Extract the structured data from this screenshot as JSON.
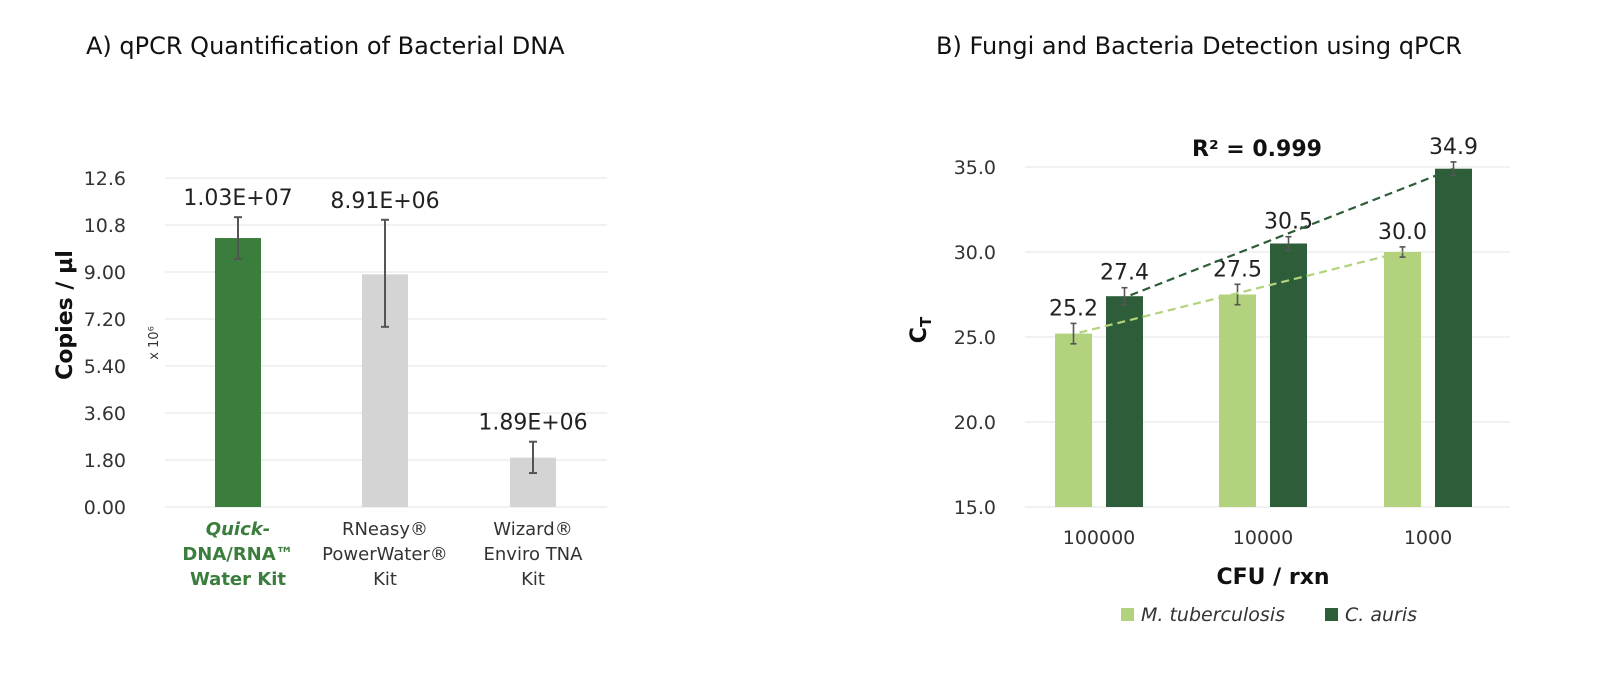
{
  "colors": {
    "highlight_green": "#3a7d3c",
    "grey_bar": "#d4d4d4",
    "light_green": "#b3d27e",
    "dark_green": "#2e5e39",
    "grid": "#e3e3e3",
    "error_bar": "#555555"
  },
  "chart_data": [
    {
      "type": "bar",
      "title": "A) qPCR Quantification of Bacterial DNA",
      "ylabel": "Copies / µl",
      "y_multiplier": "x 10⁶",
      "ylim": [
        0,
        12.6
      ],
      "yticks": [
        "0.00",
        "1.80",
        "3.60",
        "5.40",
        "7.20",
        "9.00",
        "10.8",
        "12.6"
      ],
      "categories": [
        [
          "Quick-",
          "DNA/RNA™",
          "Water Kit"
        ],
        [
          "RNeasy®",
          "PowerWater®",
          "Kit"
        ],
        [
          "Wizard®",
          "Enviro TNA",
          "Kit"
        ]
      ],
      "highlight_category": 0,
      "values": [
        10.3,
        8.91,
        1.89
      ],
      "error": [
        [
          9.5,
          11.1
        ],
        [
          6.9,
          11.0
        ],
        [
          1.3,
          2.5
        ]
      ],
      "data_labels": [
        "1.03E+07",
        "8.91E+06",
        "1.89E+06"
      ],
      "grid": true
    },
    {
      "type": "bar",
      "title": "B) Fungi and Bacteria Detection using qPCR",
      "xlabel": "CFU / rxn",
      "ylabel": "CT",
      "ylim": [
        15,
        35
      ],
      "yticks": [
        "15.0",
        "20.0",
        "25.0",
        "30.0",
        "35.0"
      ],
      "categories": [
        "100000",
        "10000",
        "1000"
      ],
      "series": [
        {
          "name": "M. tuberculosis",
          "values": [
            25.2,
            27.5,
            30.0
          ],
          "error": [
            0.6,
            0.6,
            0.3
          ],
          "data_labels": [
            "25.2",
            "27.5",
            "30.0"
          ]
        },
        {
          "name": "C. auris",
          "values": [
            27.4,
            30.5,
            34.9
          ],
          "error": [
            0.5,
            0.4,
            0.4
          ],
          "data_labels": [
            "27.4",
            "30.5",
            "34.9"
          ]
        }
      ],
      "trendlines": true,
      "annotation": "R² = 0.999",
      "legend_position": "bottom",
      "grid": true
    }
  ]
}
